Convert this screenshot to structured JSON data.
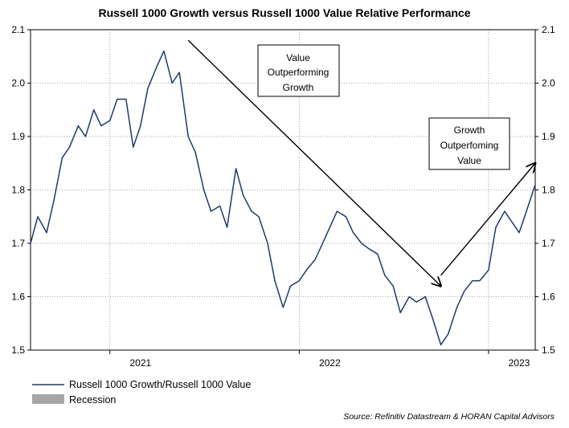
{
  "chart_data": {
    "type": "line",
    "title": "Russell 1000 Growth versus Russell 1000 Value Relative Performance",
    "y_left_ticks": [
      "1.5",
      "1.6",
      "1.7",
      "1.8",
      "1.9",
      "2.0",
      "2.1"
    ],
    "y_right_ticks": [
      "1.5",
      "1.6",
      "1.7",
      "1.8",
      "1.9",
      "2.0",
      "2.1"
    ],
    "ylim": [
      1.5,
      2.1
    ],
    "x_axis": {
      "type": "time",
      "start": "2020-08-01",
      "end": "2023-04-01",
      "tick_labels": [
        {
          "label": "2021",
          "date": "2021-03-01"
        },
        {
          "label": "2022",
          "date": "2022-03-01"
        },
        {
          "label": "2023",
          "date": "2023-03-01"
        }
      ]
    },
    "gridlines": {
      "horizontal": "dotted",
      "vertical_dates": [
        "2021-01-01",
        "2022-01-01",
        "2023-01-01"
      ]
    },
    "series": [
      {
        "name": "Russell 1000 Growth/Russell 1000 Value",
        "color": "#1f3a6b",
        "points": [
          [
            "2020-08-01",
            1.7
          ],
          [
            "2020-08-15",
            1.75
          ],
          [
            "2020-09-01",
            1.72
          ],
          [
            "2020-09-15",
            1.78
          ],
          [
            "2020-10-01",
            1.86
          ],
          [
            "2020-10-15",
            1.88
          ],
          [
            "2020-11-01",
            1.92
          ],
          [
            "2020-11-15",
            1.9
          ],
          [
            "2020-12-01",
            1.95
          ],
          [
            "2020-12-15",
            1.92
          ],
          [
            "2021-01-01",
            1.93
          ],
          [
            "2021-01-15",
            1.97
          ],
          [
            "2021-02-01",
            1.97
          ],
          [
            "2021-02-15",
            1.88
          ],
          [
            "2021-03-01",
            1.92
          ],
          [
            "2021-03-15",
            1.99
          ],
          [
            "2021-04-01",
            2.03
          ],
          [
            "2021-04-15",
            2.06
          ],
          [
            "2021-05-01",
            2.0
          ],
          [
            "2021-05-15",
            2.02
          ],
          [
            "2021-06-01",
            1.9
          ],
          [
            "2021-06-15",
            1.87
          ],
          [
            "2021-07-01",
            1.8
          ],
          [
            "2021-07-15",
            1.76
          ],
          [
            "2021-08-01",
            1.77
          ],
          [
            "2021-08-15",
            1.73
          ],
          [
            "2021-09-01",
            1.84
          ],
          [
            "2021-09-15",
            1.79
          ],
          [
            "2021-10-01",
            1.76
          ],
          [
            "2021-10-15",
            1.75
          ],
          [
            "2021-11-01",
            1.7
          ],
          [
            "2021-11-15",
            1.63
          ],
          [
            "2021-12-01",
            1.58
          ],
          [
            "2021-12-15",
            1.62
          ],
          [
            "2022-01-01",
            1.63
          ],
          [
            "2022-01-15",
            1.65
          ],
          [
            "2022-02-01",
            1.67
          ],
          [
            "2022-02-15",
            1.7
          ],
          [
            "2022-03-01",
            1.73
          ],
          [
            "2022-03-15",
            1.76
          ],
          [
            "2022-04-01",
            1.75
          ],
          [
            "2022-04-15",
            1.72
          ],
          [
            "2022-05-01",
            1.7
          ],
          [
            "2022-05-15",
            1.69
          ],
          [
            "2022-06-01",
            1.68
          ],
          [
            "2022-06-15",
            1.64
          ],
          [
            "2022-07-01",
            1.62
          ],
          [
            "2022-07-15",
            1.57
          ],
          [
            "2022-08-01",
            1.6
          ],
          [
            "2022-08-15",
            1.59
          ],
          [
            "2022-09-01",
            1.6
          ],
          [
            "2022-09-15",
            1.56
          ],
          [
            "2022-10-01",
            1.51
          ],
          [
            "2022-10-15",
            1.53
          ],
          [
            "2022-11-01",
            1.58
          ],
          [
            "2022-11-15",
            1.61
          ],
          [
            "2022-12-01",
            1.63
          ],
          [
            "2022-12-15",
            1.63
          ],
          [
            "2023-01-01",
            1.65
          ],
          [
            "2023-01-15",
            1.73
          ],
          [
            "2023-02-01",
            1.76
          ],
          [
            "2023-02-15",
            1.74
          ],
          [
            "2023-03-01",
            1.72
          ],
          [
            "2023-03-15",
            1.76
          ],
          [
            "2023-04-01",
            1.81
          ]
        ]
      },
      {
        "name": "Recession",
        "color": "#a6a6a6",
        "points": []
      }
    ],
    "annotations": [
      {
        "text_lines": [
          "Value",
          "Outperforming",
          "Growth"
        ],
        "arrow_from": [
          "2021-06-01",
          2.08
        ],
        "arrow_to": [
          "2022-10-01",
          1.62
        ]
      },
      {
        "text_lines": [
          "Growth",
          "Outperfoming",
          "Value"
        ],
        "arrow_from": [
          "2022-10-01",
          1.64
        ],
        "arrow_to": [
          "2023-04-01",
          1.85
        ]
      }
    ],
    "legend_position": "bottom-left",
    "source": "Source: Refinitiv Datastream & HORAN Capital Advisors"
  }
}
